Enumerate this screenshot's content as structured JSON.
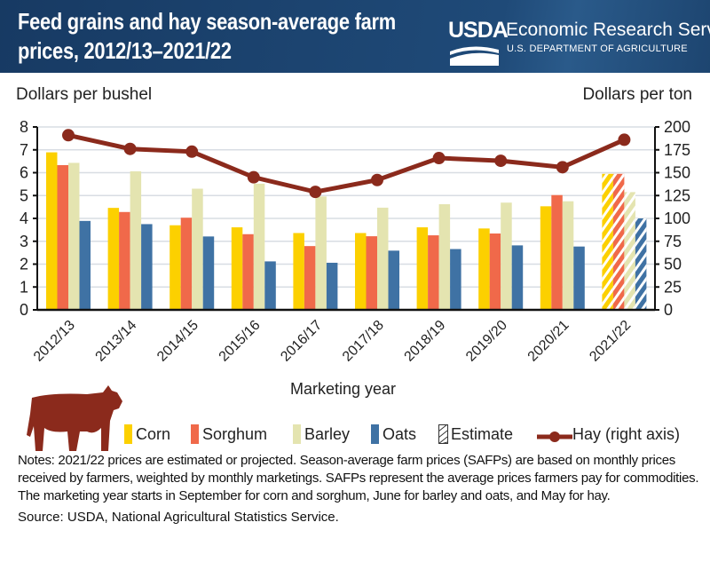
{
  "header": {
    "title": "Feed grains and hay season-average farm prices, 2012/13–2021/22",
    "logo_text": "USDA",
    "agency": "Economic Research Service",
    "department": "U.S. DEPARTMENT OF AGRICULTURE"
  },
  "chart_data": {
    "type": "bar",
    "title": "Feed grains and hay season-average farm prices, 2012/13–2021/22",
    "xlabel": "Marketing year",
    "ylabel": "Dollars per bushel",
    "ylabel_right": "Dollars per ton",
    "ylim": [
      0,
      8
    ],
    "ylim_right": [
      0,
      200
    ],
    "yticks": [
      0,
      1,
      2,
      3,
      4,
      5,
      6,
      7,
      8
    ],
    "yticks_right": [
      0,
      25,
      50,
      75,
      100,
      125,
      150,
      175,
      200
    ],
    "grid": true,
    "legend_placement": "bottom",
    "categories": [
      "2012/13",
      "2013/14",
      "2014/15",
      "2015/16",
      "2016/17",
      "2017/18",
      "2018/19",
      "2019/20",
      "2020/21",
      "2021/22"
    ],
    "series": [
      {
        "name": "Corn",
        "color": "#fcd000",
        "values": [
          6.89,
          4.46,
          3.7,
          3.61,
          3.36,
          3.36,
          3.61,
          3.56,
          4.53,
          5.95
        ]
      },
      {
        "name": "Sorghum",
        "color": "#f0694a",
        "values": [
          6.33,
          4.28,
          4.03,
          3.31,
          2.79,
          3.22,
          3.26,
          3.34,
          5.02,
          5.95
        ]
      },
      {
        "name": "Barley",
        "color": "#e4e4b0",
        "values": [
          6.43,
          6.06,
          5.3,
          5.52,
          4.96,
          4.47,
          4.62,
          4.69,
          4.75,
          5.15
        ]
      },
      {
        "name": "Oats",
        "color": "#3f72a4",
        "values": [
          3.89,
          3.75,
          3.21,
          2.12,
          2.06,
          2.59,
          2.66,
          2.82,
          2.77,
          4.0
        ]
      }
    ],
    "line_series": {
      "name": "Hay (right axis)",
      "color": "#8b2a1c",
      "axis": "right",
      "values": [
        191,
        176,
        173,
        145,
        129,
        142,
        166,
        163,
        156,
        186
      ]
    },
    "estimate": {
      "label": "Estimate",
      "categories": [
        "2021/22"
      ]
    }
  },
  "notes": "Notes: 2021/22 prices are estimated or projected. Season-average farm prices (SAFPs) are based on monthly prices received by farmers, weighted by monthly marketings. SAFPs represent the average prices farmers pay for commodities. The marketing year starts in September for corn and sorghum, June for barley and oats, and May for hay.",
  "source": "Source: USDA, National Agricultural Statistics Service."
}
